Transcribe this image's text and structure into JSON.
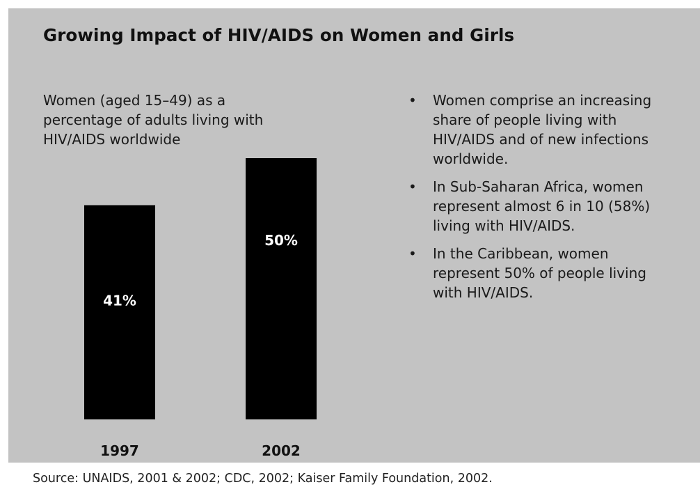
{
  "chart_data": {
    "type": "bar",
    "title": "Growing Impact of HIV/AIDS on Women and Girls",
    "subtitle": "Women (aged 15–49) as a percentage of adults living with HIV/AIDS worldwide",
    "categories": [
      "1997",
      "2002"
    ],
    "values": [
      41,
      50
    ],
    "data_labels": [
      "41%",
      "50%"
    ],
    "xlabel": "",
    "ylabel": "",
    "grid": false,
    "colors": {
      "bar": "#000000",
      "background": "#c3c3c3",
      "bar_label": "#ffffff"
    }
  },
  "bullets": [
    "Women comprise an increasing share of people living with HIV/AIDS and of new infections worldwide.",
    "In Sub-Saharan Africa, women represent almost 6 in 10 (58%) living with HIV/AIDS.",
    "In the Caribbean, women represent 50% of people living with HIV/AIDS."
  ],
  "bullet_glyph": "•",
  "source": "Source: UNAIDS, 2001 & 2002; CDC, 2002; Kaiser Family Foundation, 2002."
}
